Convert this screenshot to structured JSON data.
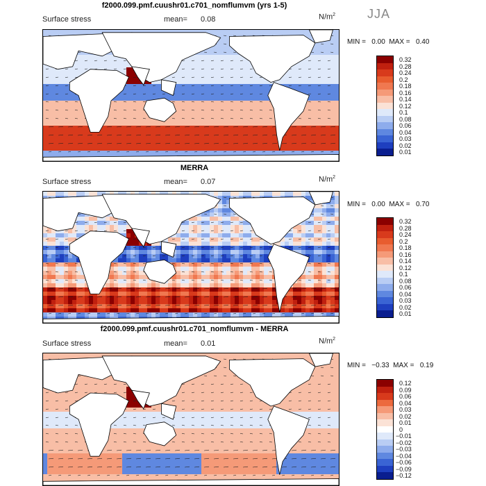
{
  "season": "JJA",
  "units_base": "N/m",
  "units_sup": "2",
  "panels": [
    {
      "title": "f2000.099.pmf.cuushr01.c701_nomflumvm (yrs 1-5)",
      "field": "Surface stress",
      "mean_label": "mean=",
      "mean_value": "0.08",
      "min_label": "MIN =",
      "min_value": "0.00",
      "max_label": "MAX =",
      "max_value": "0.40",
      "scale": "magnitude",
      "colorbar": [
        "0.32",
        "0.28",
        "0.24",
        "0.2",
        "0.18",
        "0.16",
        "0.14",
        "0.12",
        "0.1",
        "0.08",
        "0.06",
        "0.04",
        "0.03",
        "0.02",
        "0.01"
      ]
    },
    {
      "title": "MERRA",
      "field": "Surface stress",
      "mean_label": "mean=",
      "mean_value": "0.07",
      "min_label": "MIN =",
      "min_value": "0.00",
      "max_label": "MAX =",
      "max_value": "0.70",
      "scale": "magnitude",
      "colorbar": [
        "0.32",
        "0.28",
        "0.24",
        "0.2",
        "0.18",
        "0.16",
        "0.14",
        "0.12",
        "0.1",
        "0.08",
        "0.06",
        "0.04",
        "0.03",
        "0.02",
        "0.01"
      ]
    },
    {
      "title": "f2000.099.pmf.cuushr01.c701_nomflumvm - MERRA",
      "field": "Surface stress",
      "mean_label": "mean=",
      "mean_value": "0.01",
      "min_label": "MIN =",
      "min_value": "−0.33",
      "max_label": "MAX =",
      "max_value": "0.19",
      "scale": "difference",
      "colorbar": [
        "0.12",
        "0.09",
        "0.06",
        "0.04",
        "0.03",
        "0.02",
        "0.01",
        "0",
        "−0.01",
        "−0.02",
        "−0.03",
        "−0.04",
        "−0.06",
        "−0.09",
        "−0.12"
      ]
    }
  ],
  "colors": {
    "magnitude": [
      "#8b0000",
      "#c0200f",
      "#d83a1c",
      "#e85c2f",
      "#f07850",
      "#f59a78",
      "#f8bea6",
      "#fbe2d6",
      "#dfe9fa",
      "#b9cdf4",
      "#8eacec",
      "#5f88e0",
      "#3a64d4",
      "#1e3fbf",
      "#0a1e8f"
    ],
    "difference": [
      "#8b0000",
      "#c0200f",
      "#d83a1c",
      "#ec6a3e",
      "#f59a78",
      "#f8bea6",
      "#fbe2d6",
      "#ffffff",
      "#dfe9fa",
      "#b9cdf4",
      "#8eacec",
      "#5f88e0",
      "#3a64d4",
      "#1e3fbf",
      "#0a1e8f"
    ],
    "land": "#ffffff",
    "coast": "#000000"
  },
  "chart_data": [
    {
      "type": "heatmap",
      "title": "f2000.099.pmf.cuushr01.c701_nomflumvm (yrs 1-5)",
      "quantity": "Surface stress",
      "units": "N/m2",
      "season": "JJA",
      "mean": 0.08,
      "min": 0.0,
      "max": 0.4,
      "colorbar_levels": [
        0.01,
        0.02,
        0.03,
        0.04,
        0.06,
        0.08,
        0.1,
        0.12,
        0.14,
        0.16,
        0.18,
        0.2,
        0.24,
        0.28,
        0.32
      ],
      "xlabel": "",
      "ylabel": ""
    },
    {
      "type": "heatmap",
      "title": "MERRA",
      "quantity": "Surface stress",
      "units": "N/m2",
      "season": "JJA",
      "mean": 0.07,
      "min": 0.0,
      "max": 0.7,
      "colorbar_levels": [
        0.01,
        0.02,
        0.03,
        0.04,
        0.06,
        0.08,
        0.1,
        0.12,
        0.14,
        0.16,
        0.18,
        0.2,
        0.24,
        0.28,
        0.32
      ],
      "xlabel": "",
      "ylabel": ""
    },
    {
      "type": "heatmap",
      "title": "f2000.099.pmf.cuushr01.c701_nomflumvm - MERRA",
      "quantity": "Surface stress",
      "units": "N/m2",
      "season": "JJA",
      "mean": 0.01,
      "min": -0.33,
      "max": 0.19,
      "colorbar_levels": [
        -0.12,
        -0.09,
        -0.06,
        -0.04,
        -0.03,
        -0.02,
        -0.01,
        0,
        0.01,
        0.02,
        0.03,
        0.04,
        0.06,
        0.09,
        0.12
      ],
      "xlabel": "",
      "ylabel": ""
    }
  ]
}
